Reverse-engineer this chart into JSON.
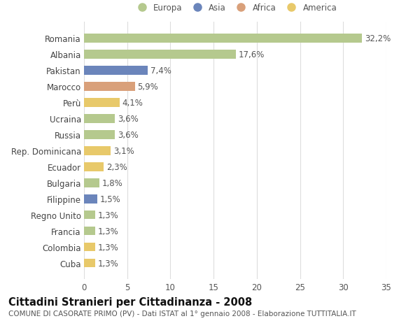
{
  "countries": [
    "Romania",
    "Albania",
    "Pakistan",
    "Marocco",
    "Perù",
    "Ucraina",
    "Russia",
    "Rep. Dominicana",
    "Ecuador",
    "Bulgaria",
    "Filippine",
    "Regno Unito",
    "Francia",
    "Colombia",
    "Cuba"
  ],
  "values": [
    32.2,
    17.6,
    7.4,
    5.9,
    4.1,
    3.6,
    3.6,
    3.1,
    2.3,
    1.8,
    1.5,
    1.3,
    1.3,
    1.3,
    1.3
  ],
  "labels": [
    "32,2%",
    "17,6%",
    "7,4%",
    "5,9%",
    "4,1%",
    "3,6%",
    "3,6%",
    "3,1%",
    "2,3%",
    "1,8%",
    "1,5%",
    "1,3%",
    "1,3%",
    "1,3%",
    "1,3%"
  ],
  "continents": [
    "Europa",
    "Europa",
    "Asia",
    "Africa",
    "America",
    "Europa",
    "Europa",
    "America",
    "America",
    "Europa",
    "Asia",
    "Europa",
    "Europa",
    "America",
    "America"
  ],
  "continent_colors": {
    "Europa": "#b5c98e",
    "Asia": "#6b85bb",
    "Africa": "#d9a07a",
    "America": "#e8c96a"
  },
  "legend_labels": [
    "Europa",
    "Asia",
    "Africa",
    "America"
  ],
  "legend_colors": [
    "#b5c98e",
    "#6b85bb",
    "#d9a07a",
    "#e8c96a"
  ],
  "title": "Cittadini Stranieri per Cittadinanza - 2008",
  "subtitle": "COMUNE DI CASORATE PRIMO (PV) - Dati ISTAT al 1° gennaio 2008 - Elaborazione TUTTITALIA.IT",
  "xlim": [
    0,
    35
  ],
  "xticks": [
    0,
    5,
    10,
    15,
    20,
    25,
    30,
    35
  ],
  "background_color": "#ffffff",
  "grid_color": "#dddddd",
  "bar_height": 0.55,
  "label_fontsize": 8.5,
  "tick_fontsize": 8.5,
  "title_fontsize": 10.5,
  "subtitle_fontsize": 7.5
}
